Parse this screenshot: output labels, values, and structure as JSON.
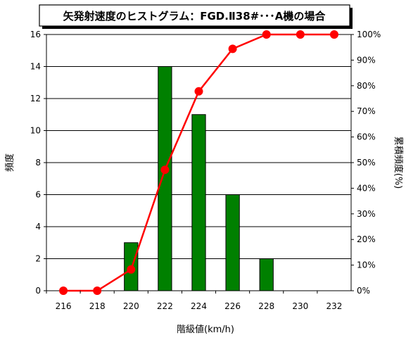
{
  "chart_data": {
    "type": "bar",
    "title": "矢発射速度のヒストグラム：FGD.Ⅱ38#･･･A機の場合",
    "xlabel": "階級値(km/h)",
    "ylabel": "頻度",
    "y2label": "累積頻度(%)",
    "categories": [
      "216",
      "218",
      "220",
      "222",
      "224",
      "226",
      "228",
      "230",
      "232"
    ],
    "ylim": [
      0,
      16
    ],
    "yticks": [
      "0",
      "2",
      "4",
      "6",
      "8",
      "10",
      "12",
      "14",
      "16"
    ],
    "y2lim": [
      0,
      100
    ],
    "y2ticks": [
      "0%",
      "10%",
      "20%",
      "30%",
      "40%",
      "50%",
      "60%",
      "70%",
      "80%",
      "90%",
      "100%"
    ],
    "grid": true,
    "series": [
      {
        "type": "bar",
        "axis": "left",
        "color": "#008000",
        "values": [
          0,
          0,
          3,
          14,
          11,
          6,
          2,
          0,
          0
        ]
      },
      {
        "type": "line",
        "axis": "right",
        "color": "#ff0000",
        "values": [
          0,
          0,
          8.3,
          47.2,
          77.8,
          94.4,
          100,
          100,
          100
        ]
      }
    ]
  }
}
